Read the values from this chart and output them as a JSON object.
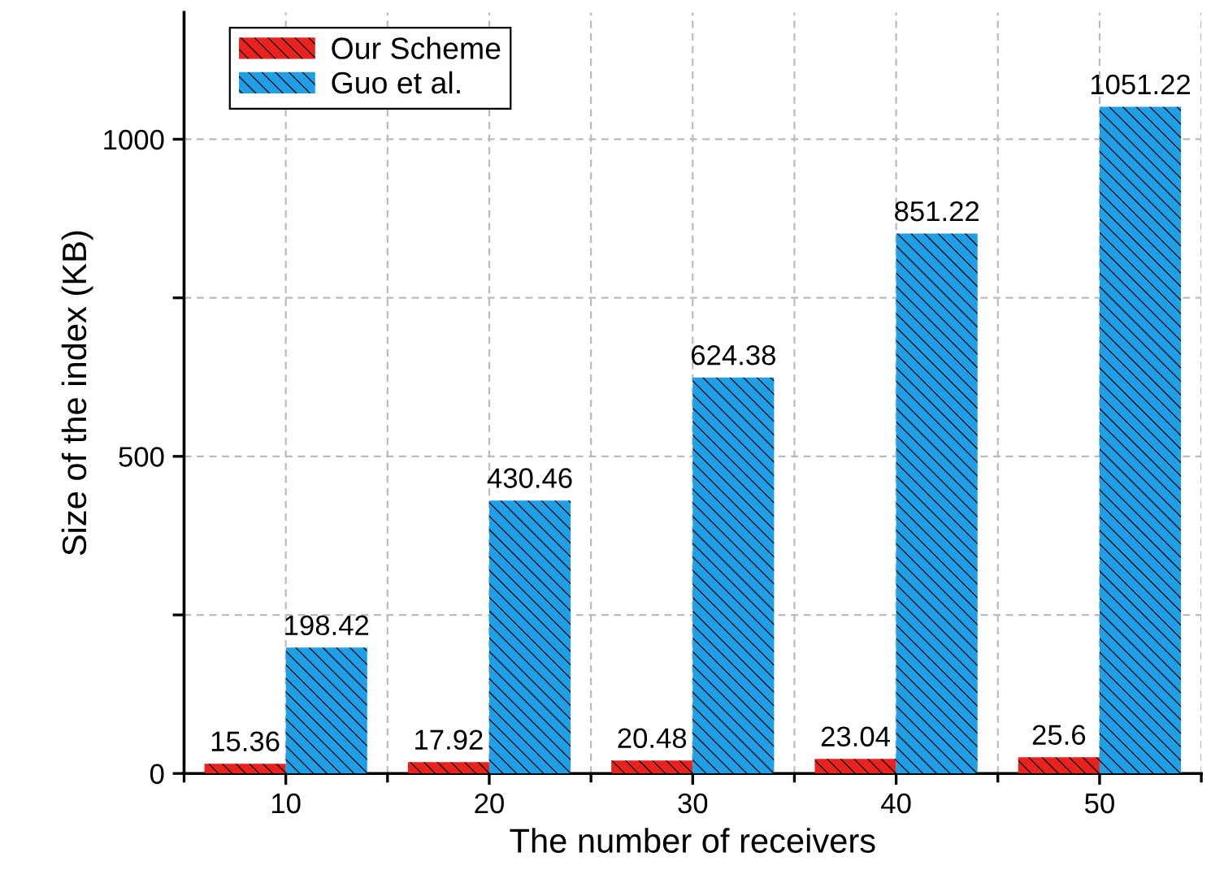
{
  "chart_data": {
    "type": "bar",
    "xlabel": "The number of receivers",
    "ylabel": "Size of the index (KB)",
    "categories": [
      "10",
      "20",
      "30",
      "40",
      "50"
    ],
    "series": [
      {
        "name": "Our Scheme",
        "color": "#e8231f",
        "values": [
          15.36,
          17.92,
          20.48,
          23.04,
          25.6
        ]
      },
      {
        "name": "Guo et al.",
        "color": "#1e9fe6",
        "values": [
          198.42,
          430.46,
          624.38,
          851.22,
          1051.22
        ]
      }
    ],
    "ylim": [
      0,
      1200
    ],
    "yticks": [
      0,
      {
        "value": 250,
        "label": null
      },
      500,
      {
        "value": 750,
        "label": null
      },
      1000
    ],
    "grid": true,
    "legend": "top left",
    "data_labels": true
  }
}
